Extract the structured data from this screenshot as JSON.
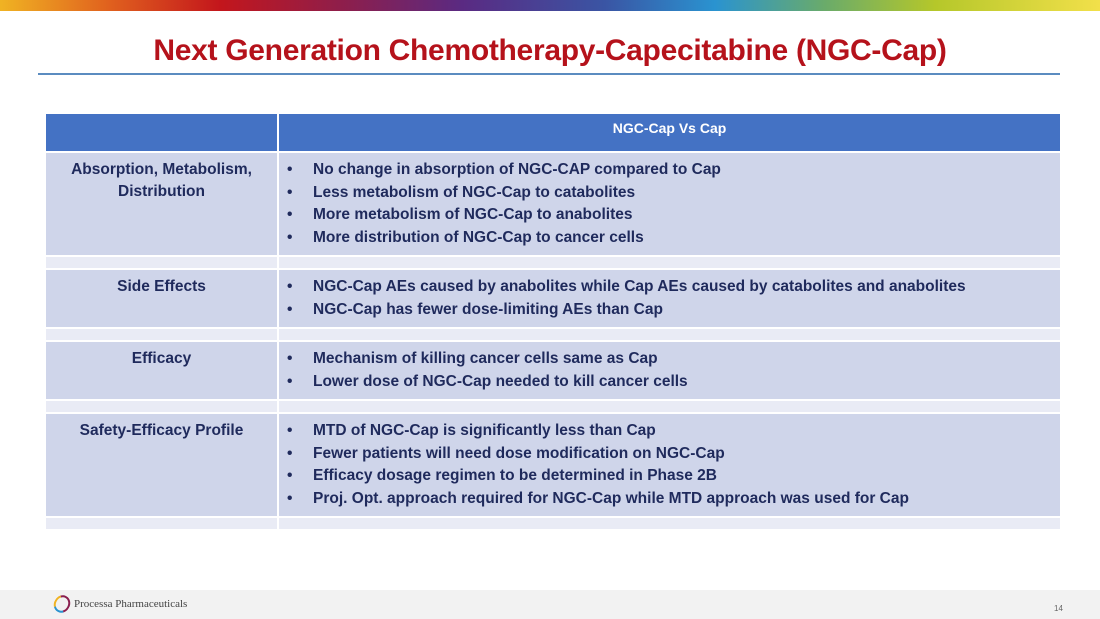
{
  "title": "Next Generation Chemotherapy-Capecitabine (NGC-Cap)",
  "table": {
    "header": [
      "",
      "NGC-Cap Vs Cap"
    ],
    "rows": [
      {
        "label": "Absorption, Metabolism, Distribution",
        "items": [
          "No change in absorption of NGC-CAP compared to Cap",
          "Less metabolism of NGC-Cap to catabolites",
          "More metabolism of NGC-Cap to anabolites",
          "More distribution of NGC-Cap to cancer cells"
        ]
      },
      {
        "label": "Side Effects",
        "items": [
          "NGC-Cap AEs caused by anabolites while Cap AEs caused by catabolites and anabolites",
          "NGC-Cap has fewer dose-limiting AEs than Cap"
        ]
      },
      {
        "label": "Efficacy",
        "items": [
          "Mechanism of killing cancer cells same as Cap",
          "Lower dose of NGC-Cap needed to kill cancer cells"
        ]
      },
      {
        "label": "Safety-Efficacy Profile",
        "items": [
          "MTD of NGC-Cap is significantly less than Cap",
          "Fewer patients will need dose modification on NGC-Cap",
          "Efficacy dosage regimen to be determined in Phase 2B",
          "Proj. Opt. approach required for NGC-Cap while MTD approach was used for Cap"
        ]
      }
    ]
  },
  "footer": {
    "brand": "Processa Pharmaceuticals",
    "page": "14"
  },
  "colors": {
    "title": "#b5121b",
    "header": "#4472c4",
    "row": "#cfd5ea",
    "text": "#1f2a5c"
  }
}
